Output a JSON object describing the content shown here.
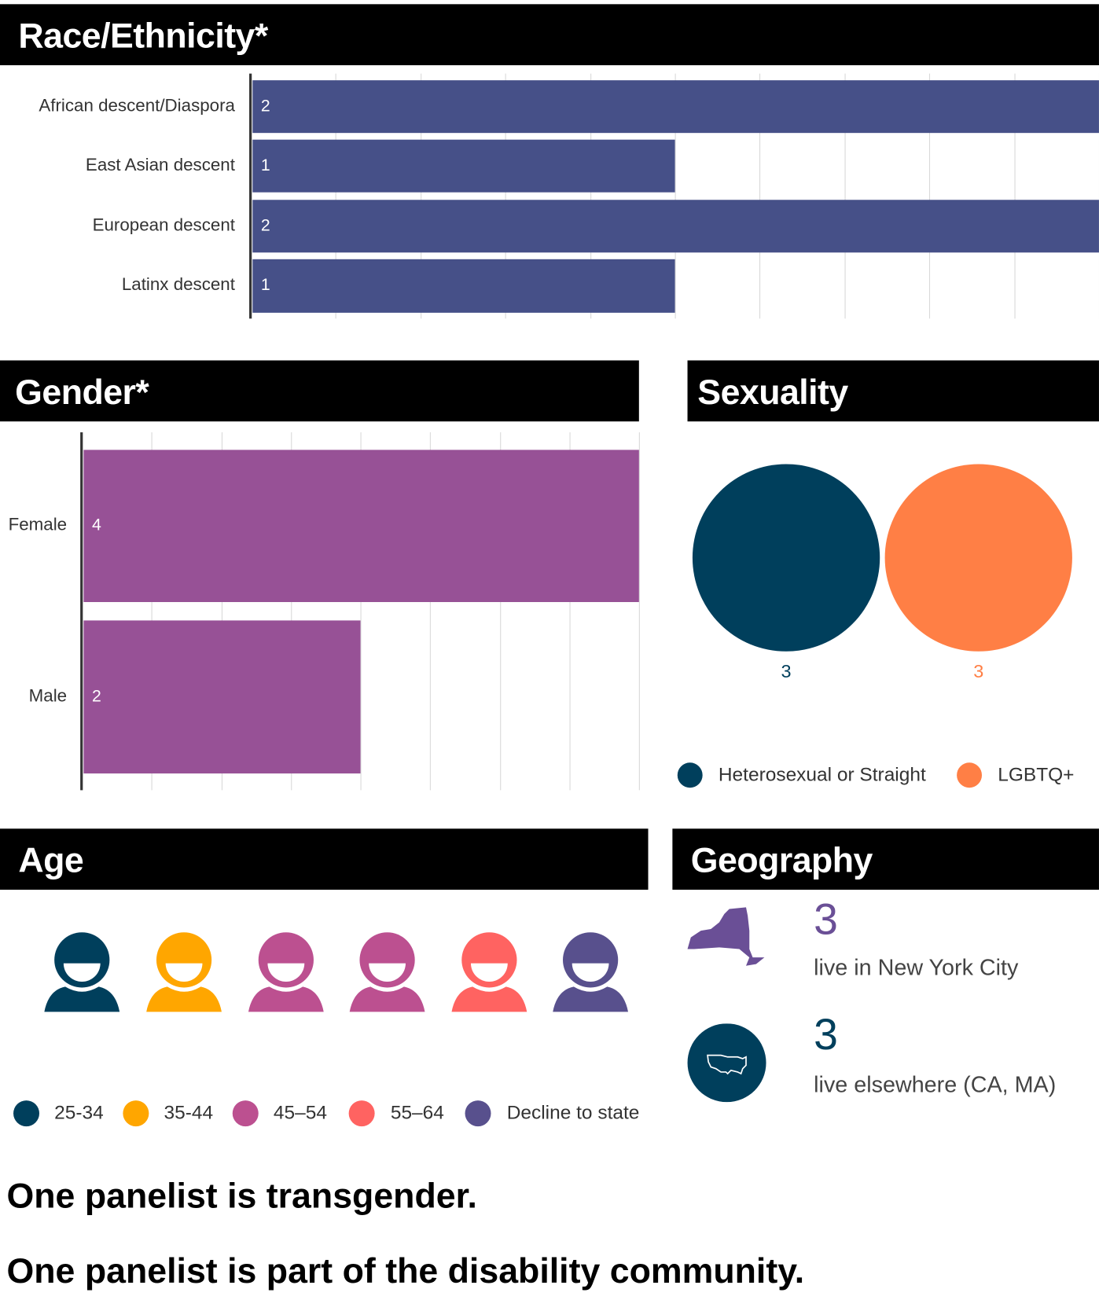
{
  "sections": {
    "race_title": "Race/Ethnicity*",
    "gender_title": "Gender*",
    "sexuality_title": "Sexuality",
    "age_title": "Age",
    "geography_title": "Geography"
  },
  "chart_data": [
    {
      "type": "bar",
      "orientation": "horizontal",
      "title": "Race/Ethnicity*",
      "categories": [
        "African descent/Diaspora",
        "East Asian descent",
        "European descent",
        "Latinx descent"
      ],
      "values": [
        2,
        1,
        2,
        1
      ],
      "xlim": [
        0,
        2
      ],
      "grid": true,
      "color": "#465088"
    },
    {
      "type": "bar",
      "orientation": "horizontal",
      "title": "Gender*",
      "categories": [
        "Female",
        "Male"
      ],
      "values": [
        4,
        2
      ],
      "xlim": [
        0,
        4
      ],
      "grid": true,
      "color": "#975196"
    },
    {
      "type": "bubble",
      "title": "Sexuality",
      "series": [
        {
          "name": "Heterosexual or Straight",
          "value": 3,
          "color": "#003f5c"
        },
        {
          "name": "LGBTQ+",
          "value": 3,
          "color": "#ff7f45"
        }
      ],
      "legend": "bottom"
    }
  ],
  "age": {
    "people": [
      {
        "group": "25-34",
        "color": "#003f5c"
      },
      {
        "group": "35-44",
        "color": "#ffa600"
      },
      {
        "group": "45–54",
        "color": "#bc5090"
      },
      {
        "group": "45–54",
        "color": "#bc5090"
      },
      {
        "group": "55–64",
        "color": "#ff6361"
      },
      {
        "group": "Decline to state",
        "color": "#58508d"
      }
    ],
    "legend": [
      {
        "label": "25-34",
        "color": "#003f5c"
      },
      {
        "label": "35-44",
        "color": "#ffa600"
      },
      {
        "label": "45–54",
        "color": "#bc5090"
      },
      {
        "label": "55–64",
        "color": "#ff6361"
      },
      {
        "label": "Decline to state",
        "color": "#58508d"
      }
    ]
  },
  "geography": {
    "items": [
      {
        "icon": "new-york-state-icon",
        "count": "3",
        "text": "live in New York City",
        "color": "#6a4f96"
      },
      {
        "icon": "usa-map-icon",
        "count": "3",
        "text": "live elsewhere (CA, MA)",
        "color": "#003f5c"
      }
    ]
  },
  "footer": {
    "line1": "One panelist is transgender.",
    "line2": "One panelist is part of the disability community."
  }
}
